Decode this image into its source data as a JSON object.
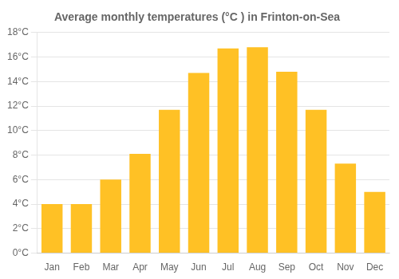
{
  "chart_data": {
    "type": "bar",
    "title": "Average monthly temperatures (°C ) in Frinton-on-Sea",
    "categories": [
      "Jan",
      "Feb",
      "Mar",
      "Apr",
      "May",
      "Jun",
      "Jul",
      "Aug",
      "Sep",
      "Oct",
      "Nov",
      "Dec"
    ],
    "values": [
      4.0,
      4.0,
      6.0,
      8.1,
      11.7,
      14.7,
      16.7,
      16.8,
      14.8,
      11.7,
      7.3,
      5.0
    ],
    "color": "#FFC125",
    "ylim": [
      0,
      18
    ],
    "yticks": [
      {
        "value": 0,
        "label": "0°C"
      },
      {
        "value": 2,
        "label": "2°C"
      },
      {
        "value": 4,
        "label": "4°C"
      },
      {
        "value": 6,
        "label": "6°C"
      },
      {
        "value": 8,
        "label": "8°C"
      },
      {
        "value": 10,
        "label": "10°C"
      },
      {
        "value": 12,
        "label": "12°C"
      },
      {
        "value": 14,
        "label": "14°C"
      },
      {
        "value": 16,
        "label": "16°C"
      },
      {
        "value": 18,
        "label": "18°C"
      }
    ],
    "grid": true
  }
}
